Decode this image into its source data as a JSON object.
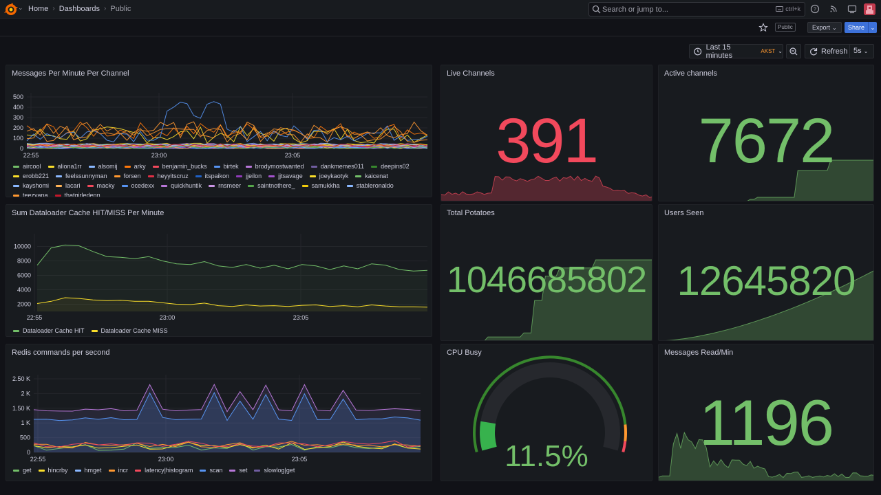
{
  "nav": {
    "breadcrumbs": [
      "Home",
      "Dashboards",
      "Public"
    ],
    "search_placeholder": "Search or jump to...",
    "search_shortcut": "ctrl+k",
    "icons": [
      "help-icon",
      "news-icon",
      "kiosk-icon"
    ]
  },
  "toolbar": {
    "public_badge": "Public",
    "export_label": "Export",
    "share_label": "Share"
  },
  "timepicker": {
    "range": "Last 15 minutes",
    "timezone": "AKST",
    "refresh_label": "Refresh",
    "interval": "5s"
  },
  "colors": {
    "green": "#73bf69",
    "red": "#f2495c",
    "yellow": "#fade2a",
    "blue": "#5794f2",
    "orange": "#ff9830",
    "purple": "#b877d9"
  },
  "panels": {
    "messages": {
      "title": "Messages Per Minute Per Channel",
      "legend": [
        {
          "name": "aircool",
          "color": "#73bf69"
        },
        {
          "name": "aliona1rr",
          "color": "#fade2a"
        },
        {
          "name": "alsomij",
          "color": "#8ab8ff"
        },
        {
          "name": "arky",
          "color": "#ff780a"
        },
        {
          "name": "benjamin_bucks",
          "color": "#f2495c"
        },
        {
          "name": "birtek",
          "color": "#5794f2"
        },
        {
          "name": "brodymostwanted",
          "color": "#b877d9"
        },
        {
          "name": "dankmemes011",
          "color": "#705da0"
        },
        {
          "name": "deepins02",
          "color": "#37872d"
        },
        {
          "name": "erobb221",
          "color": "#fade2a"
        },
        {
          "name": "feelssunnyman",
          "color": "#8ab8ff"
        },
        {
          "name": "forsen",
          "color": "#ff9830"
        },
        {
          "name": "heyyitscruz",
          "color": "#e02f44"
        },
        {
          "name": "itspaikon",
          "color": "#1f60c4"
        },
        {
          "name": "jjeilon",
          "color": "#8f3bb8"
        },
        {
          "name": "jjtsavage",
          "color": "#a352cc"
        },
        {
          "name": "joeykaotyk",
          "color": "#fade2a"
        },
        {
          "name": "kaicenat",
          "color": "#73bf69"
        },
        {
          "name": "kayshomi",
          "color": "#8ab8ff"
        },
        {
          "name": "lacari",
          "color": "#ffb357"
        },
        {
          "name": "macky",
          "color": "#f2495c"
        },
        {
          "name": "ocedexx",
          "color": "#5794f2"
        },
        {
          "name": "quickhuntik",
          "color": "#b877d9"
        },
        {
          "name": "rnsmeer",
          "color": "#ca95e5"
        },
        {
          "name": "saintnothere_",
          "color": "#56a64b"
        },
        {
          "name": "samukkha",
          "color": "#f2cc0c"
        },
        {
          "name": "stableronaldo",
          "color": "#8ab8ff"
        },
        {
          "name": "teezyana",
          "color": "#ff9830"
        },
        {
          "name": "thatgirledenn",
          "color": "#c4162a"
        }
      ]
    },
    "dataloader": {
      "title": "Sum Dataloader Cache HIT/MISS Per Minute",
      "legend": [
        {
          "name": "Dataloader Cache HIT",
          "color": "#73bf69"
        },
        {
          "name": "Dataloader Cache MISS",
          "color": "#fade2a"
        }
      ]
    },
    "redis": {
      "title": "Redis commands per second",
      "legend": [
        {
          "name": "get",
          "color": "#73bf69"
        },
        {
          "name": "hincrby",
          "color": "#fade2a"
        },
        {
          "name": "hmget",
          "color": "#8ab8ff"
        },
        {
          "name": "incr",
          "color": "#ff9830"
        },
        {
          "name": "latency|histogram",
          "color": "#f2495c"
        },
        {
          "name": "scan",
          "color": "#5794f2"
        },
        {
          "name": "set",
          "color": "#b877d9"
        },
        {
          "name": "slowlog|get",
          "color": "#705da0"
        }
      ]
    },
    "live_channels": {
      "title": "Live Channels",
      "value": "391"
    },
    "active_channels": {
      "title": "Active channels",
      "value": "7672"
    },
    "total_potatoes": {
      "title": "Total Potatoes",
      "value": "1046685802"
    },
    "users_seen": {
      "title": "Users Seen",
      "value": "12645820"
    },
    "cpu_busy": {
      "title": "CPU Busy",
      "value": "11.5%",
      "percent": 11.5
    },
    "messages_read": {
      "title": "Messages Read/Min",
      "value": "1196"
    }
  },
  "chart_data": [
    {
      "type": "line",
      "title": "Messages Per Minute Per Channel",
      "x_ticks": [
        "22:55",
        "23:00",
        "23:05"
      ],
      "y_ticks": [
        "0",
        "100",
        "200",
        "300",
        "400",
        "500"
      ],
      "ylim": [
        0,
        550
      ]
    },
    {
      "type": "line",
      "title": "Sum Dataloader Cache HIT/MISS Per Minute",
      "x_ticks": [
        "22:55",
        "23:00",
        "23:05"
      ],
      "y_ticks": [
        "2000",
        "4000",
        "6000",
        "8000",
        "10000"
      ],
      "ylim": [
        1000,
        11000
      ],
      "series": [
        {
          "name": "Dataloader Cache HIT",
          "values": [
            7400,
            9800,
            10200,
            10100,
            9300,
            8600,
            8500,
            8300,
            8600,
            8000,
            7600,
            7500,
            7900,
            7300,
            7100,
            7500,
            7000,
            7400,
            6900,
            7500,
            7300,
            6800,
            7300,
            6900,
            7600,
            7400,
            6800,
            6600,
            6700
          ]
        },
        {
          "name": "Dataloader Cache MISS",
          "values": [
            2100,
            2400,
            2900,
            2800,
            2600,
            2500,
            2550,
            2400,
            2400,
            2200,
            2000,
            1950,
            2150,
            1800,
            1700,
            1900,
            1750,
            1800,
            1700,
            1850,
            1900,
            1700,
            1800,
            1650,
            1900,
            1750,
            1650,
            1650,
            1600
          ]
        }
      ]
    },
    {
      "type": "area",
      "title": "Redis commands per second",
      "x_ticks": [
        "22:55",
        "23:00",
        "23:05"
      ],
      "y_ticks": [
        "0",
        "500",
        "1 K",
        "1.50 K",
        "2 K",
        "2.50 K"
      ],
      "ylim": [
        0,
        2700
      ]
    }
  ]
}
